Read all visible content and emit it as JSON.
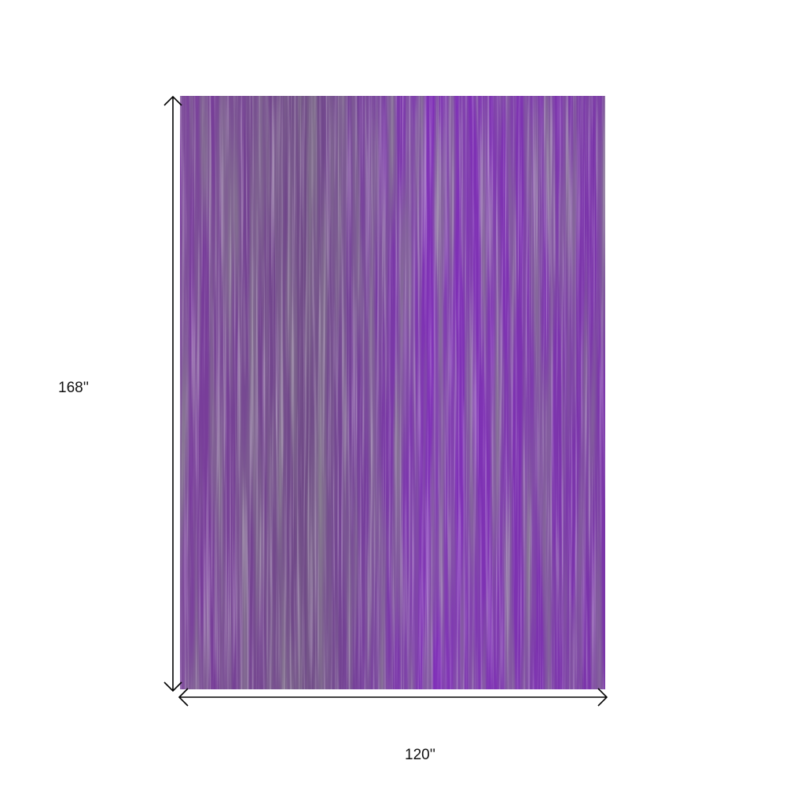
{
  "product": {
    "rug_colors": {
      "base": "#7a2fb0",
      "dark": "#4b2a5c",
      "highlight": "#b98fd6",
      "gray": "#6a6470"
    },
    "height_label": "168''",
    "width_label": "120''"
  }
}
